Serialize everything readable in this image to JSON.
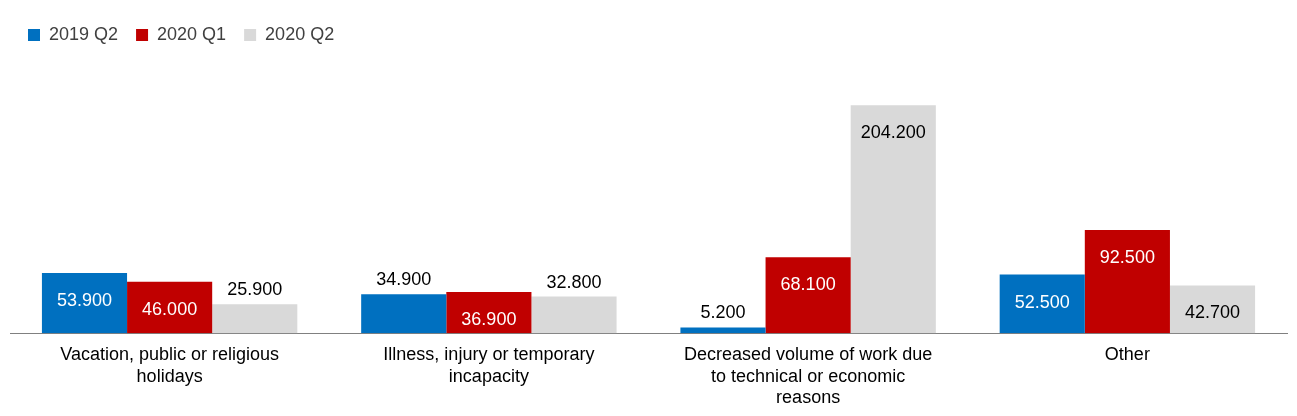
{
  "chart_data": {
    "type": "bar",
    "categories": [
      "Vacation, public or religious holidays",
      "Illness, injury or temporary incapacity",
      "Decreased volume of work due to technical or economic reasons",
      "Other"
    ],
    "series": [
      {
        "name": "2019 Q2",
        "color": "#0070c0",
        "values": [
          53900,
          34900,
          5200,
          52500
        ],
        "value_labels": [
          "53.900",
          "34.900",
          "5.200",
          "52.500"
        ]
      },
      {
        "name": "2020 Q1",
        "color": "#c00000",
        "values": [
          46000,
          36900,
          68100,
          92500
        ],
        "value_labels": [
          "46.000",
          "36.900",
          "68.100",
          "92.500"
        ]
      },
      {
        "name": "2020 Q2",
        "color": "#d9d9d9",
        "values": [
          25900,
          32800,
          204200,
          42700
        ],
        "value_labels": [
          "25.900",
          "32.800",
          "204.200",
          "42.700"
        ]
      }
    ],
    "legend": "top left",
    "grid": false
  }
}
